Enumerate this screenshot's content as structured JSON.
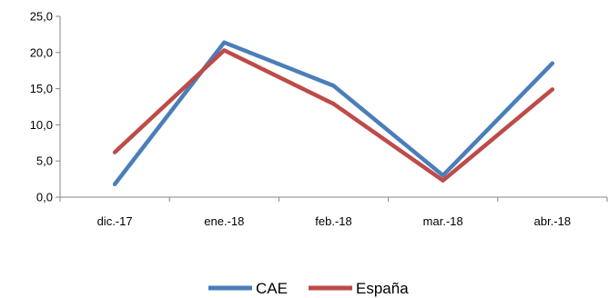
{
  "chart_data": {
    "type": "line",
    "categories": [
      "dic.-17",
      "ene.-18",
      "feb.-18",
      "mar.-18",
      "abr.-18"
    ],
    "series": [
      {
        "name": "CAE",
        "values": [
          1.8,
          21.4,
          15.4,
          3.0,
          18.5
        ],
        "color": "#4a7ebb"
      },
      {
        "name": "España",
        "values": [
          6.2,
          20.3,
          12.9,
          2.3,
          14.9
        ],
        "color": "#be4b48"
      }
    ],
    "y_ticks": [
      "0,0",
      "5,0",
      "10,0",
      "15,0",
      "20,0",
      "25,0"
    ],
    "ylim": [
      0,
      25
    ],
    "grid": false,
    "legend_position": "bottom"
  }
}
